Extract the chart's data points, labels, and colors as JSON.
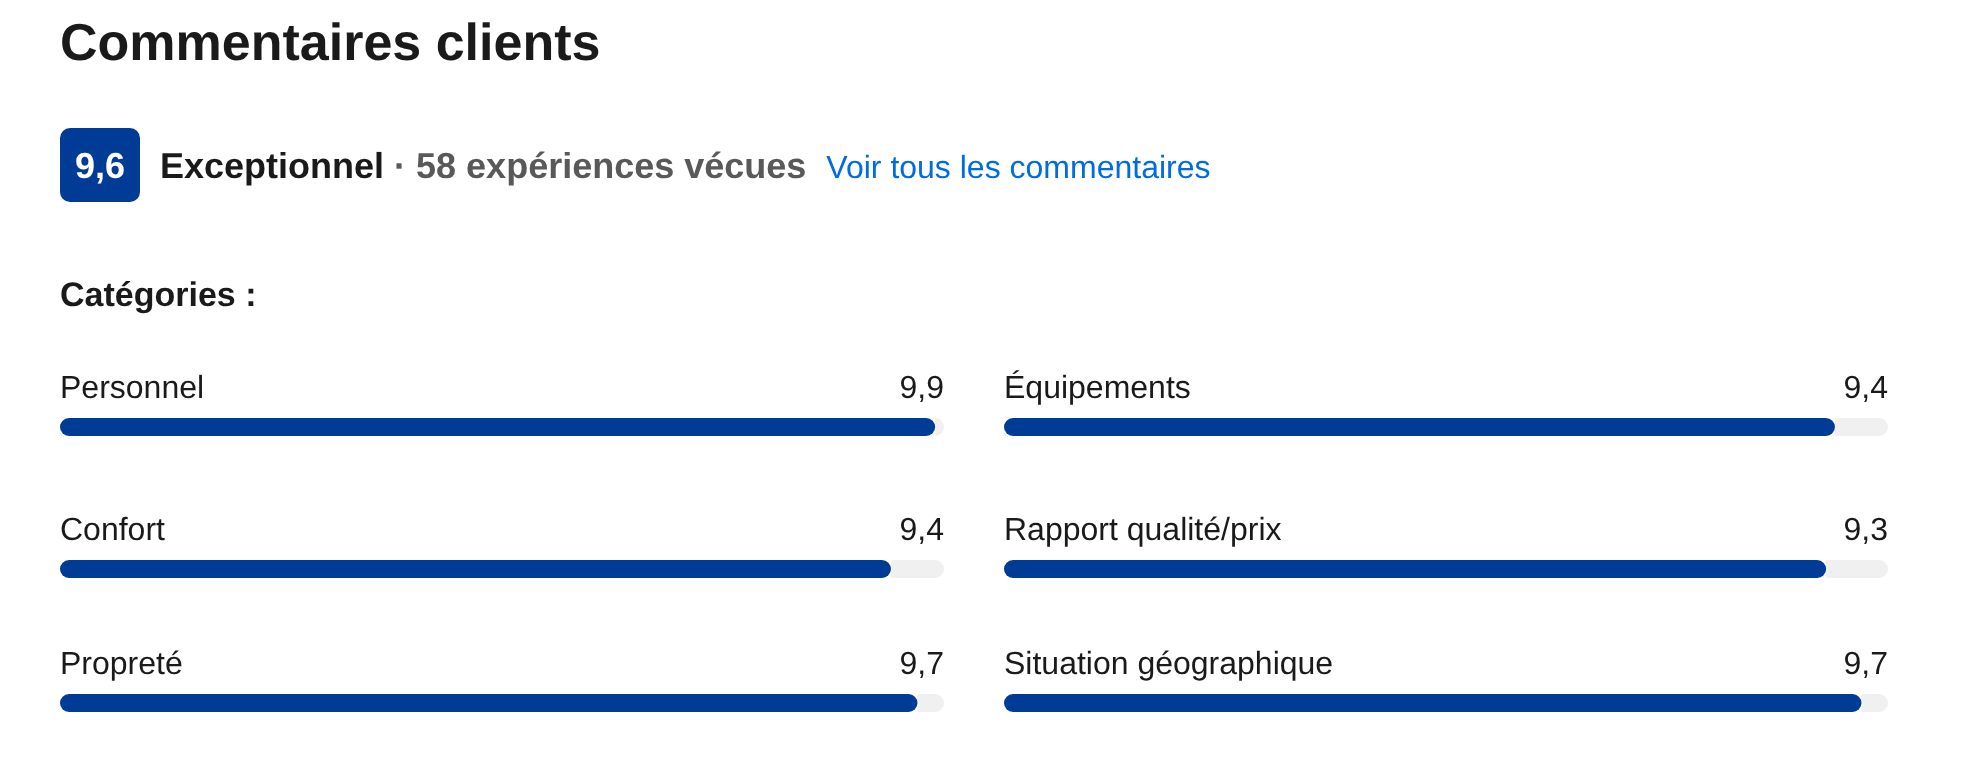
{
  "chart_data": [
    {
      "type": "bar",
      "orientation": "horizontal",
      "title": "Commentaires clients",
      "subtitle": "Catégories :",
      "annotations": [
        "9,6",
        "Exceptionnel",
        "· 58 expériences vécues",
        "Voir tous les commentaires"
      ],
      "categories": [
        "Personnel",
        "Confort",
        "Propreté"
      ],
      "values": [
        9.9,
        9.4,
        9.7
      ],
      "value_labels": [
        "9,9",
        "9,4",
        "9,7"
      ],
      "color": "#003b95",
      "xlim": [
        0,
        10
      ]
    },
    {
      "type": "bar",
      "orientation": "horizontal",
      "categories": [
        "Équipements",
        "Rapport qualité/prix",
        "Situation géographique"
      ],
      "values": [
        9.4,
        9.3,
        9.7
      ],
      "value_labels": [
        "9,4",
        "9,3",
        "9,7"
      ],
      "color": "#003b95",
      "xlim": [
        0,
        10
      ]
    }
  ]
}
